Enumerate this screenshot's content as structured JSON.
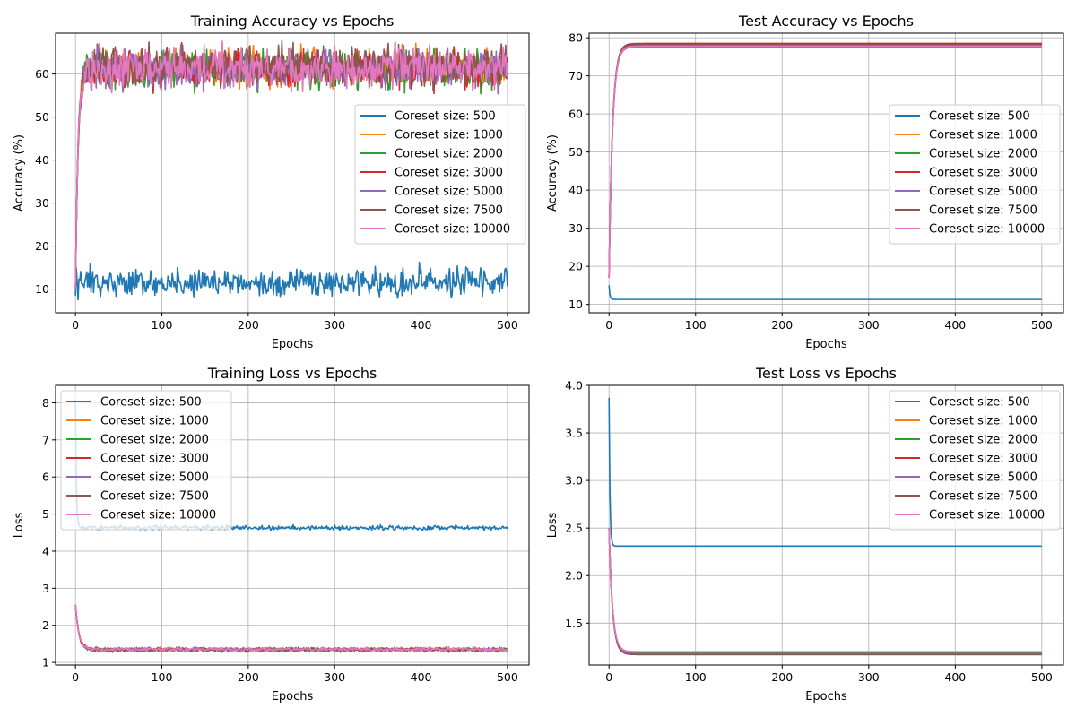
{
  "colors": {
    "500": "#1f77b4",
    "1000": "#ff7f0e",
    "2000": "#2ca02c",
    "3000": "#d62728",
    "5000": "#9467bd",
    "7500": "#8c564b",
    "10000": "#e377c2"
  },
  "chart_data": [
    {
      "type": "line",
      "title": "Training Accuracy vs Epochs",
      "xlabel": "Epochs",
      "ylabel": "Accuracy (%)",
      "xlim": [
        -23,
        525
      ],
      "ylim": [
        4.5,
        69.5
      ],
      "xticks": [
        0,
        100,
        200,
        300,
        400,
        500
      ],
      "yticks": [
        10,
        20,
        30,
        40,
        50,
        60
      ],
      "grid": true,
      "legend_position": "center-right",
      "series": [
        {
          "name": "Coreset size: 500",
          "pattern": {
            "kind": "noisy",
            "start": 8.5,
            "plateau": 11.5,
            "noise": 1.6
          }
        },
        {
          "name": "Coreset size: 1000",
          "pattern": {
            "kind": "rise",
            "start": 10,
            "plateau": 61.5,
            "noise": 2.2,
            "tau": 3
          }
        },
        {
          "name": "Coreset size: 2000",
          "pattern": {
            "kind": "rise",
            "start": 10,
            "plateau": 61,
            "noise": 2.2,
            "tau": 3
          }
        },
        {
          "name": "Coreset size: 3000",
          "pattern": {
            "kind": "rise",
            "start": 10,
            "plateau": 61,
            "noise": 2.2,
            "tau": 3
          }
        },
        {
          "name": "Coreset size: 5000",
          "pattern": {
            "kind": "rise",
            "start": 10,
            "plateau": 61.5,
            "noise": 2.2,
            "tau": 3
          }
        },
        {
          "name": "Coreset size: 7500",
          "pattern": {
            "kind": "rise",
            "start": 10,
            "plateau": 62,
            "noise": 2.2,
            "tau": 3
          }
        },
        {
          "name": "Coreset size: 10000",
          "pattern": {
            "kind": "rise",
            "start": 10,
            "plateau": 61.5,
            "noise": 2.2,
            "tau": 3
          }
        }
      ]
    },
    {
      "type": "line",
      "title": "Test Accuracy vs Epochs",
      "xlabel": "Epochs",
      "ylabel": "Accuracy (%)",
      "xlim": [
        -23,
        525
      ],
      "ylim": [
        7.8,
        81.2
      ],
      "xticks": [
        0,
        100,
        200,
        300,
        400,
        500
      ],
      "yticks": [
        10,
        20,
        30,
        40,
        50,
        60,
        70,
        80
      ],
      "grid": true,
      "legend_position": "center-right",
      "series": [
        {
          "name": "Coreset size: 500",
          "pattern": {
            "kind": "drop",
            "start": 15,
            "plateau": 11.3,
            "noise": 0,
            "tau": 1
          }
        },
        {
          "name": "Coreset size: 1000",
          "pattern": {
            "kind": "rise",
            "start": 17,
            "plateau": 78.3,
            "noise": 0,
            "tau": 4
          }
        },
        {
          "name": "Coreset size: 2000",
          "pattern": {
            "kind": "rise",
            "start": 17,
            "plateau": 78.0,
            "noise": 0,
            "tau": 4
          }
        },
        {
          "name": "Coreset size: 3000",
          "pattern": {
            "kind": "rise",
            "start": 17,
            "plateau": 78.5,
            "noise": 0,
            "tau": 4
          }
        },
        {
          "name": "Coreset size: 5000",
          "pattern": {
            "kind": "rise",
            "start": 17,
            "plateau": 77.6,
            "noise": 0,
            "tau": 4
          }
        },
        {
          "name": "Coreset size: 7500",
          "pattern": {
            "kind": "rise",
            "start": 17,
            "plateau": 78.2,
            "noise": 0,
            "tau": 4
          }
        },
        {
          "name": "Coreset size: 10000",
          "pattern": {
            "kind": "rise",
            "start": 17,
            "plateau": 77.8,
            "noise": 0,
            "tau": 4
          }
        }
      ]
    },
    {
      "type": "line",
      "title": "Training Loss vs Epochs",
      "xlabel": "Epochs",
      "ylabel": "Loss",
      "xlim": [
        -23,
        525
      ],
      "ylim": [
        0.93,
        8.47
      ],
      "xticks": [
        0,
        100,
        200,
        300,
        400,
        500
      ],
      "yticks": [
        1,
        2,
        3,
        4,
        5,
        6,
        7,
        8
      ],
      "grid": true,
      "legend_position": "upper-left",
      "series": [
        {
          "name": "Coreset size: 500",
          "pattern": {
            "kind": "drop",
            "start": 8.1,
            "plateau": 4.63,
            "noise": 0.03,
            "tau": 1
          }
        },
        {
          "name": "Coreset size: 1000",
          "pattern": {
            "kind": "drop",
            "start": 2.55,
            "plateau": 1.35,
            "noise": 0.025,
            "tau": 4
          }
        },
        {
          "name": "Coreset size: 2000",
          "pattern": {
            "kind": "drop",
            "start": 2.55,
            "plateau": 1.35,
            "noise": 0.025,
            "tau": 4
          }
        },
        {
          "name": "Coreset size: 3000",
          "pattern": {
            "kind": "drop",
            "start": 2.55,
            "plateau": 1.34,
            "noise": 0.025,
            "tau": 4
          }
        },
        {
          "name": "Coreset size: 5000",
          "pattern": {
            "kind": "drop",
            "start": 2.55,
            "plateau": 1.35,
            "noise": 0.025,
            "tau": 4
          }
        },
        {
          "name": "Coreset size: 7500",
          "pattern": {
            "kind": "drop",
            "start": 2.55,
            "plateau": 1.34,
            "noise": 0.025,
            "tau": 4
          }
        },
        {
          "name": "Coreset size: 10000",
          "pattern": {
            "kind": "drop",
            "start": 2.55,
            "plateau": 1.35,
            "noise": 0.025,
            "tau": 4
          }
        }
      ]
    },
    {
      "type": "line",
      "title": "Test Loss vs Epochs",
      "xlabel": "Epochs",
      "ylabel": "Loss",
      "xlim": [
        -23,
        525
      ],
      "ylim": [
        1.06,
        4.0
      ],
      "xticks": [
        0,
        100,
        200,
        300,
        400,
        500
      ],
      "yticks": [
        1.5,
        2.0,
        2.5,
        3.0,
        3.5,
        4.0
      ],
      "ytick_labels": [
        "1.5",
        "2.0",
        "2.5",
        "3.0",
        "3.5",
        "4.0"
      ],
      "grid": true,
      "legend_position": "upper-right",
      "series": [
        {
          "name": "Coreset size: 500",
          "pattern": {
            "kind": "drop",
            "start": 3.87,
            "plateau": 2.31,
            "noise": 0,
            "tau": 1
          }
        },
        {
          "name": "Coreset size: 1000",
          "pattern": {
            "kind": "drop",
            "start": 2.5,
            "plateau": 1.18,
            "noise": 0,
            "tau": 4
          }
        },
        {
          "name": "Coreset size: 2000",
          "pattern": {
            "kind": "drop",
            "start": 2.5,
            "plateau": 1.19,
            "noise": 0,
            "tau": 4
          }
        },
        {
          "name": "Coreset size: 3000",
          "pattern": {
            "kind": "drop",
            "start": 2.5,
            "plateau": 1.17,
            "noise": 0,
            "tau": 4
          }
        },
        {
          "name": "Coreset size: 5000",
          "pattern": {
            "kind": "drop",
            "start": 2.5,
            "plateau": 1.18,
            "noise": 0,
            "tau": 4
          }
        },
        {
          "name": "Coreset size: 7500",
          "pattern": {
            "kind": "drop",
            "start": 2.5,
            "plateau": 1.17,
            "noise": 0,
            "tau": 4
          }
        },
        {
          "name": "Coreset size: 10000",
          "pattern": {
            "kind": "drop",
            "start": 2.5,
            "plateau": 1.2,
            "noise": 0,
            "tau": 4
          }
        }
      ]
    }
  ]
}
